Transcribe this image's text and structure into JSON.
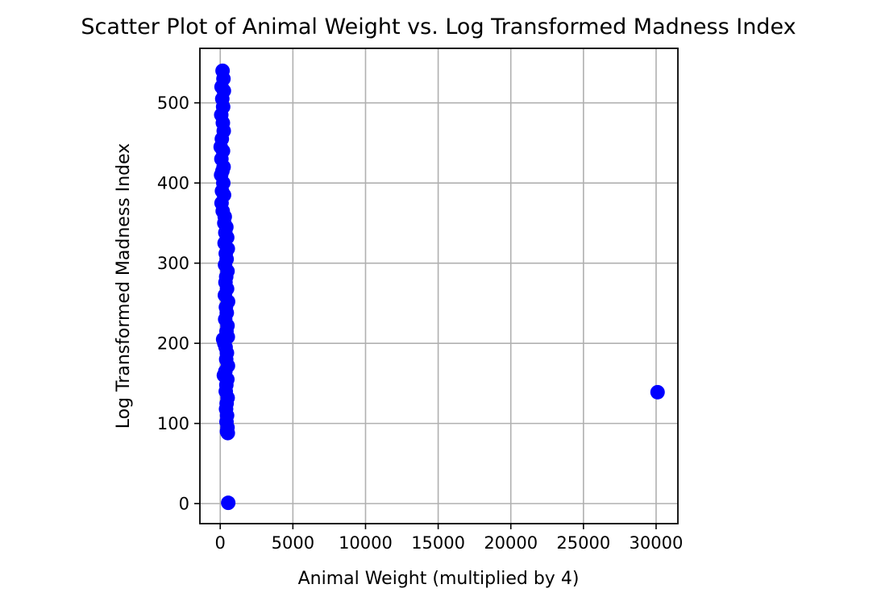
{
  "chart_data": {
    "type": "scatter",
    "title": "Scatter Plot of Animal Weight vs. Log Transformed Madness Index",
    "xlabel": "Animal Weight (multiplied by 4)",
    "ylabel": "Log Transformed Madness Index",
    "xlim": [
      -1400,
      31500
    ],
    "ylim": [
      -25,
      568
    ],
    "xticks": [
      0,
      5000,
      10000,
      15000,
      20000,
      25000,
      30000
    ],
    "xtick_labels": [
      "0",
      "5000",
      "10000",
      "15000",
      "20000",
      "25000",
      "30000"
    ],
    "yticks": [
      0,
      100,
      200,
      300,
      400,
      500
    ],
    "ytick_labels": [
      "0",
      "100",
      "200",
      "300",
      "400",
      "500"
    ],
    "grid": true,
    "marker_color": "#0000ff",
    "series": [
      {
        "points": [
          [
            160,
            540
          ],
          [
            220,
            530
          ],
          [
            90,
            520
          ],
          [
            250,
            515
          ],
          [
            140,
            505
          ],
          [
            200,
            495
          ],
          [
            70,
            485
          ],
          [
            180,
            475
          ],
          [
            240,
            465
          ],
          [
            110,
            455
          ],
          [
            30,
            445
          ],
          [
            190,
            440
          ],
          [
            80,
            430
          ],
          [
            230,
            420
          ],
          [
            150,
            415
          ],
          [
            60,
            410
          ],
          [
            210,
            400
          ],
          [
            120,
            390
          ],
          [
            260,
            385
          ],
          [
            90,
            375
          ],
          [
            170,
            365
          ],
          [
            310,
            358
          ],
          [
            280,
            350
          ],
          [
            420,
            345
          ],
          [
            350,
            338
          ],
          [
            480,
            332
          ],
          [
            300,
            325
          ],
          [
            520,
            318
          ],
          [
            380,
            312
          ],
          [
            440,
            305
          ],
          [
            330,
            298
          ],
          [
            500,
            290
          ],
          [
            410,
            283
          ],
          [
            360,
            276
          ],
          [
            470,
            268
          ],
          [
            320,
            260
          ],
          [
            540,
            252
          ],
          [
            390,
            245
          ],
          [
            450,
            238
          ],
          [
            340,
            230
          ],
          [
            500,
            222
          ],
          [
            430,
            215
          ],
          [
            520,
            208
          ],
          [
            200,
            205
          ],
          [
            280,
            200
          ],
          [
            370,
            195
          ],
          [
            460,
            188
          ],
          [
            410,
            180
          ],
          [
            530,
            172
          ],
          [
            350,
            165
          ],
          [
            250,
            160
          ],
          [
            490,
            155
          ],
          [
            420,
            148
          ],
          [
            380,
            140
          ],
          [
            510,
            132
          ],
          [
            440,
            125
          ],
          [
            400,
            118
          ],
          [
            470,
            110
          ],
          [
            430,
            102
          ],
          [
            500,
            95
          ],
          [
            460,
            90
          ],
          [
            520,
            88
          ],
          [
            30100,
            139
          ],
          [
            550,
            1
          ]
        ]
      }
    ]
  }
}
